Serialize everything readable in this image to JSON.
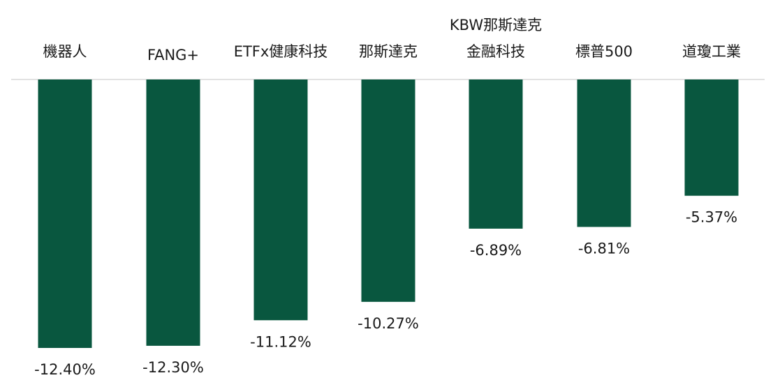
{
  "chart_data": {
    "type": "bar",
    "categories": [
      "機器人",
      "FANG+",
      "ETFx健康科技",
      "那斯達克",
      "KBW那斯達克\n金融科技",
      "標普500",
      "道瓊工業"
    ],
    "values": [
      -12.4,
      -12.3,
      -11.12,
      -10.27,
      -6.89,
      -6.81,
      -5.37
    ],
    "data_labels": [
      "-12.40%",
      "-12.30%",
      "-11.12%",
      "-10.27%",
      "-6.89%",
      "-6.81%",
      "-5.37%"
    ],
    "title": "",
    "xlabel": "",
    "ylabel": "",
    "ylim": [
      -12.4,
      0
    ],
    "grid": false,
    "legend": "none",
    "bar_color": "#09573f",
    "axis_color": "#d9d9d9"
  }
}
